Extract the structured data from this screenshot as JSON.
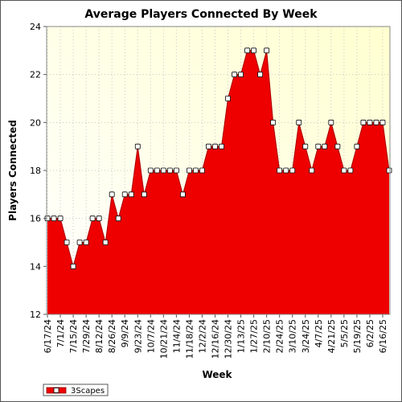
{
  "chart_data": {
    "type": "area",
    "title": "Average Players Connected By Week",
    "xlabel": "Week",
    "ylabel": "Players Connected",
    "ylim": [
      12,
      24
    ],
    "yticks": [
      12,
      14,
      16,
      18,
      20,
      22,
      24
    ],
    "grid": true,
    "legend_position": "bottom-left",
    "x_tick_labels": [
      "6/17/24",
      "7/1/24",
      "7/15/24",
      "7/29/24",
      "8/12/24",
      "8/26/24",
      "9/9/24",
      "9/23/24",
      "10/7/24",
      "10/21/24",
      "11/4/24",
      "11/18/24",
      "12/2/24",
      "12/16/24",
      "12/30/24",
      "1/13/25",
      "1/27/25",
      "2/10/25",
      "2/24/25",
      "3/10/25",
      "3/24/25",
      "4/7/25",
      "4/21/25",
      "5/5/25",
      "5/19/25",
      "6/2/25",
      "6/16/25"
    ],
    "series": [
      {
        "name": "3Scapes",
        "color": "#ee0000",
        "values": [
          16,
          16,
          16,
          15,
          14,
          15,
          15,
          16,
          16,
          15,
          17,
          16,
          17,
          17,
          19,
          17,
          18,
          18,
          18,
          18,
          18,
          17,
          18,
          18,
          18,
          19,
          19,
          19,
          21,
          22,
          22,
          23,
          23,
          22,
          23,
          20,
          18,
          18,
          18,
          20,
          19,
          18,
          19,
          19,
          20,
          19,
          18,
          18,
          19,
          20,
          20,
          20,
          20,
          18
        ]
      }
    ]
  }
}
